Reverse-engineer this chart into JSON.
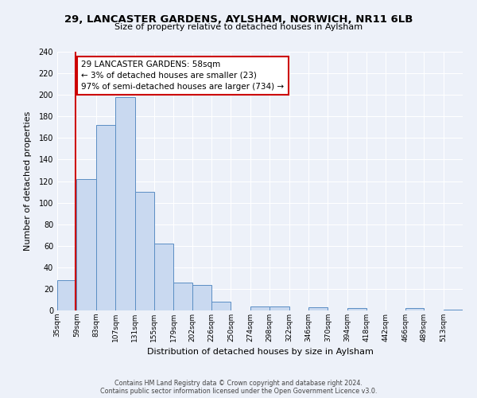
{
  "title": "29, LANCASTER GARDENS, AYLSHAM, NORWICH, NR11 6LB",
  "subtitle": "Size of property relative to detached houses in Aylsham",
  "xlabel": "Distribution of detached houses by size in Aylsham",
  "ylabel": "Number of detached properties",
  "bin_labels": [
    "35sqm",
    "59sqm",
    "83sqm",
    "107sqm",
    "131sqm",
    "155sqm",
    "179sqm",
    "202sqm",
    "226sqm",
    "250sqm",
    "274sqm",
    "298sqm",
    "322sqm",
    "346sqm",
    "370sqm",
    "394sqm",
    "418sqm",
    "442sqm",
    "466sqm",
    "489sqm",
    "513sqm"
  ],
  "bar_values": [
    28,
    122,
    172,
    198,
    110,
    62,
    26,
    24,
    8,
    0,
    4,
    4,
    0,
    3,
    0,
    2,
    0,
    0,
    2,
    0,
    1
  ],
  "bar_color": "#c9d9f0",
  "bar_edge_color": "#5b8ec4",
  "property_line_x": 58,
  "property_line_color": "#cc0000",
  "annotation_text": "29 LANCASTER GARDENS: 58sqm\n← 3% of detached houses are smaller (23)\n97% of semi-detached houses are larger (734) →",
  "annotation_box_color": "#ffffff",
  "annotation_box_edge": "#cc0000",
  "ylim": [
    0,
    240
  ],
  "yticks": [
    0,
    20,
    40,
    60,
    80,
    100,
    120,
    140,
    160,
    180,
    200,
    220,
    240
  ],
  "footer_line1": "Contains HM Land Registry data © Crown copyright and database right 2024.",
  "footer_line2": "Contains public sector information licensed under the Open Government Licence v3.0.",
  "bg_color": "#edf1f9",
  "plot_bg_color": "#edf1f9"
}
